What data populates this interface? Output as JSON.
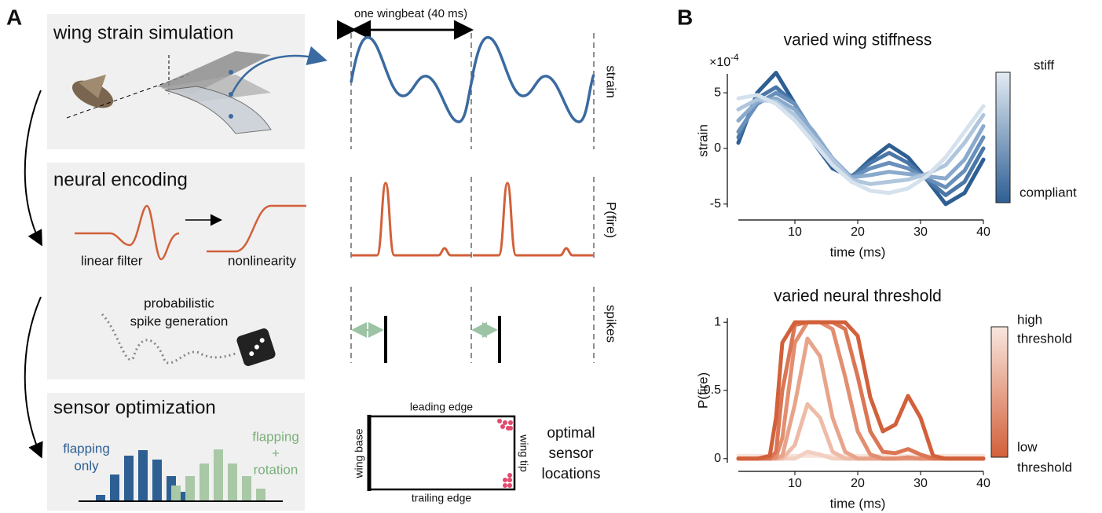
{
  "panel_a": {
    "label": "A",
    "simulation": {
      "title": "wing strain simulation"
    },
    "encoding": {
      "title": "neural encoding",
      "filter": "linear filter",
      "nonlinearity": "nonlinearity",
      "generation": [
        "probabilistic",
        "spike generation"
      ]
    },
    "optimization": {
      "title": "sensor optimization",
      "flapping_only": [
        "flapping",
        "only"
      ],
      "flapping_rotation": [
        "flapping",
        "+",
        "rotation"
      ]
    },
    "traces": {
      "wingbeat": "one wingbeat (40 ms)",
      "strain": "strain",
      "p_fire": "P(fire)",
      "spikes": "spikes"
    },
    "wing": {
      "leading": "leading edge",
      "trailing": "trailing edge",
      "base": "wing base",
      "tip": "wing tip",
      "caption": [
        "optimal",
        "sensor",
        "locations"
      ]
    }
  },
  "panel_b": {
    "label": "B"
  },
  "chart_data": [
    {
      "type": "line",
      "title": "varied wing stiffness",
      "y_label": "strain",
      "x_label": "time (ms)",
      "y_multiplier": "×10",
      "y_exponent": "-4",
      "x": [
        1,
        4,
        7,
        10,
        13,
        16,
        19,
        22,
        25,
        28,
        31,
        34,
        37,
        40
      ],
      "xlim": [
        0,
        40
      ],
      "ylim": [
        -5.3,
        6.7
      ],
      "xticks": [
        10,
        20,
        30,
        40
      ],
      "yticks": [
        -5,
        0,
        5
      ],
      "colorbar": {
        "top": [
          "stiff"
        ],
        "bottom": [
          "compliant"
        ]
      },
      "series": [
        {
          "color": "#2e5f93",
          "values": [
            0.5,
            5,
            6.8,
            4,
            0.5,
            -1.8,
            -2.6,
            -1,
            0.3,
            -0.8,
            -2.8,
            -5,
            -4,
            -1
          ]
        },
        {
          "color": "#4a77a8",
          "values": [
            1,
            4.5,
            5.5,
            4,
            1,
            -1.5,
            -2.5,
            -1.3,
            -0.4,
            -1.3,
            -2.8,
            -4.2,
            -3,
            0
          ]
        },
        {
          "color": "#6890bb",
          "values": [
            1.5,
            4,
            5,
            4,
            1.3,
            -1.2,
            -2.6,
            -1.8,
            -1.3,
            -1.8,
            -2.7,
            -3.5,
            -2,
            1
          ]
        },
        {
          "color": "#8aaacd",
          "values": [
            2.5,
            4.2,
            4.5,
            3.5,
            1.5,
            -0.9,
            -2.6,
            -2.4,
            -2.1,
            -2.3,
            -2.5,
            -2.7,
            -1,
            2
          ]
        },
        {
          "color": "#afc6dd",
          "values": [
            3.5,
            4.4,
            4.2,
            3,
            1,
            -1,
            -2.8,
            -3.2,
            -3,
            -2.8,
            -2.3,
            -1.5,
            0.5,
            3
          ]
        },
        {
          "color": "#d5e2ee",
          "values": [
            4.5,
            4.8,
            4,
            2.5,
            0.5,
            -1.5,
            -3,
            -3.8,
            -4,
            -3.6,
            -2.5,
            -0.8,
            1.5,
            3.8
          ]
        }
      ]
    },
    {
      "type": "line",
      "title": "varied neural threshold",
      "y_label": "P(fire)",
      "x_label": "time (ms)",
      "x": [
        1,
        4,
        6,
        7,
        8,
        10,
        12,
        14,
        16,
        18,
        20,
        22,
        24,
        26,
        28,
        30,
        32,
        34,
        36,
        40
      ],
      "xlim": [
        0,
        40
      ],
      "ylim": [
        -0.03,
        1.03
      ],
      "xticks": [
        10,
        20,
        30,
        40
      ],
      "yticks": [
        0,
        0.5,
        1
      ],
      "colorbar": {
        "top": [
          "high",
          "threshold"
        ],
        "bottom": [
          "low",
          "threshold"
        ]
      },
      "series": [
        {
          "color": "#f7e3da",
          "values": [
            0.02,
            0.02,
            0.02,
            0.02,
            0.02,
            0.02,
            0.02,
            0.02,
            0.02,
            0.02,
            0.02,
            0.02,
            0.02,
            0.02,
            0.02,
            0.02,
            0.02,
            0.02,
            0.02,
            0.02
          ]
        },
        {
          "color": "#f2cfc1",
          "values": [
            0,
            0,
            0,
            0,
            0,
            0,
            0.05,
            0.03,
            0,
            0,
            0,
            0,
            0,
            0,
            0,
            0,
            0,
            0,
            0,
            0
          ]
        },
        {
          "color": "#eebba7",
          "values": [
            0,
            0,
            0,
            0,
            0,
            0.1,
            0.4,
            0.3,
            0.05,
            0,
            0,
            0,
            0,
            0,
            0,
            0,
            0,
            0,
            0,
            0
          ]
        },
        {
          "color": "#e8a48a",
          "values": [
            0,
            0,
            0,
            0,
            0.02,
            0.4,
            0.88,
            0.75,
            0.3,
            0.05,
            0,
            0,
            0,
            0,
            0,
            0,
            0,
            0,
            0,
            0
          ]
        },
        {
          "color": "#e38e70",
          "values": [
            0,
            0,
            0,
            0.01,
            0.15,
            0.85,
            1,
            1,
            0.95,
            0.6,
            0.2,
            0.03,
            0,
            0,
            0.01,
            0,
            0,
            0,
            0,
            0
          ]
        },
        {
          "color": "#db7655",
          "values": [
            0,
            0,
            0,
            0.05,
            0.5,
            0.98,
            1,
            1,
            1,
            0.95,
            0.6,
            0.2,
            0.05,
            0.04,
            0.07,
            0.03,
            0,
            0,
            0,
            0
          ]
        },
        {
          "color": "#d2603a",
          "values": [
            0,
            0,
            0.02,
            0.3,
            0.85,
            1,
            1,
            1,
            1,
            1,
            0.9,
            0.45,
            0.2,
            0.25,
            0.46,
            0.3,
            0.02,
            0,
            0,
            0
          ]
        }
      ]
    }
  ]
}
